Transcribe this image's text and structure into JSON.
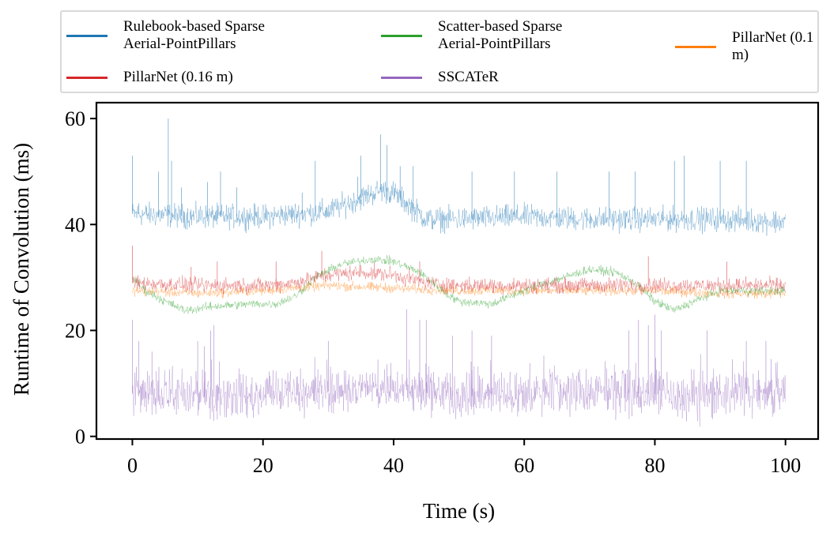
{
  "chart_data": {
    "type": "line",
    "title": "",
    "xlabel": "Time (s)",
    "ylabel": "Runtime of Convolution (ms)",
    "xlim": [
      -5.5,
      105
    ],
    "ylim": [
      -0.5,
      63
    ],
    "xticks": [
      0,
      20,
      40,
      60,
      80,
      100
    ],
    "yticks": [
      0,
      20,
      40,
      60
    ],
    "grid": false,
    "legend_position": "top",
    "series": [
      {
        "name": "Rulebook-based Sparse\nAerial-PointPillars",
        "color": "#1f77b4",
        "baseline": [
          [
            0,
            42
          ],
          [
            10,
            41.5
          ],
          [
            20,
            41.5
          ],
          [
            30,
            42.5
          ],
          [
            35,
            45
          ],
          [
            38,
            46.5
          ],
          [
            40,
            46
          ],
          [
            43,
            43
          ],
          [
            45,
            41
          ],
          [
            50,
            41
          ],
          [
            60,
            41.5
          ],
          [
            70,
            41
          ],
          [
            80,
            41
          ],
          [
            90,
            41
          ],
          [
            100,
            40.5
          ]
        ],
        "noise": 2.2,
        "spikes": [
          [
            0,
            53
          ],
          [
            1,
            44
          ],
          [
            4,
            50
          ],
          [
            5.5,
            60
          ],
          [
            6,
            52
          ],
          [
            7.5,
            47
          ],
          [
            11.5,
            48
          ],
          [
            13.5,
            50
          ],
          [
            16,
            47
          ],
          [
            26,
            46
          ],
          [
            28,
            52
          ],
          [
            34.5,
            49
          ],
          [
            35,
            53
          ],
          [
            38,
            57
          ],
          [
            39,
            55
          ],
          [
            41,
            51
          ],
          [
            43,
            51
          ],
          [
            52,
            50
          ],
          [
            58.5,
            50
          ],
          [
            65,
            50
          ],
          [
            73,
            50
          ],
          [
            77,
            50
          ],
          [
            83,
            52
          ],
          [
            84.5,
            53
          ],
          [
            90,
            52
          ],
          [
            94,
            52
          ]
        ]
      },
      {
        "name": "Scatter-based Sparse\nAerial-PointPillars",
        "color": "#2ca02c",
        "baseline": [
          [
            0,
            30
          ],
          [
            2,
            27.5
          ],
          [
            5,
            25.5
          ],
          [
            8,
            23.8
          ],
          [
            12,
            24.5
          ],
          [
            18,
            25
          ],
          [
            22,
            25
          ],
          [
            25,
            26.5
          ],
          [
            28,
            30
          ],
          [
            32,
            32.5
          ],
          [
            37,
            33.5
          ],
          [
            40,
            33
          ],
          [
            44,
            31
          ],
          [
            48,
            27
          ],
          [
            50,
            25.5
          ],
          [
            55,
            25
          ],
          [
            58,
            26.5
          ],
          [
            62,
            28.5
          ],
          [
            66,
            30
          ],
          [
            70,
            31.5
          ],
          [
            74,
            31
          ],
          [
            77,
            29
          ],
          [
            80,
            25.5
          ],
          [
            83,
            23.8
          ],
          [
            86,
            25.5
          ],
          [
            90,
            27.5
          ],
          [
            95,
            27.5
          ],
          [
            100,
            27.5
          ]
        ],
        "noise": 0.8,
        "spikes": []
      },
      {
        "name": "PillarNet (0.1 m)",
        "color": "#ff7f0e",
        "baseline": [
          [
            0,
            27.5
          ],
          [
            10,
            27
          ],
          [
            20,
            27.5
          ],
          [
            30,
            28.5
          ],
          [
            40,
            28
          ],
          [
            50,
            27.5
          ],
          [
            60,
            27.5
          ],
          [
            70,
            27.5
          ],
          [
            80,
            27.5
          ],
          [
            90,
            27
          ],
          [
            100,
            27
          ]
        ],
        "noise": 0.9,
        "spikes": []
      },
      {
        "name": "PillarNet (0.16 m)",
        "color": "#d62728",
        "baseline": [
          [
            0,
            29
          ],
          [
            10,
            28.5
          ],
          [
            20,
            28.5
          ],
          [
            25,
            29
          ],
          [
            30,
            30.5
          ],
          [
            35,
            31
          ],
          [
            40,
            30.5
          ],
          [
            45,
            29
          ],
          [
            50,
            28.5
          ],
          [
            60,
            28.5
          ],
          [
            70,
            28.5
          ],
          [
            80,
            28.5
          ],
          [
            90,
            28.5
          ],
          [
            100,
            28.5
          ]
        ],
        "noise": 1.4,
        "spikes": [
          [
            0,
            36
          ],
          [
            9,
            32
          ],
          [
            13,
            33
          ],
          [
            22,
            33
          ],
          [
            29,
            35
          ],
          [
            44,
            33
          ],
          [
            79,
            34
          ],
          [
            91,
            33
          ]
        ]
      },
      {
        "name": "SSCATeR",
        "color": "#9467bd",
        "baseline": [
          [
            0,
            8
          ],
          [
            10,
            7.5
          ],
          [
            20,
            7.5
          ],
          [
            30,
            8.5
          ],
          [
            40,
            9
          ],
          [
            50,
            7.5
          ],
          [
            60,
            8
          ],
          [
            70,
            8.5
          ],
          [
            80,
            8
          ],
          [
            83,
            7
          ],
          [
            90,
            8
          ],
          [
            100,
            8
          ]
        ],
        "noise": 4.0,
        "spikes": [
          [
            0,
            22
          ],
          [
            1,
            18
          ],
          [
            3,
            16
          ],
          [
            10,
            18
          ],
          [
            11,
            17
          ],
          [
            12,
            20
          ],
          [
            12.5,
            21
          ],
          [
            30,
            18
          ],
          [
            42,
            24
          ],
          [
            44,
            22
          ],
          [
            45,
            22
          ],
          [
            49,
            19
          ],
          [
            52,
            20
          ],
          [
            55,
            19
          ],
          [
            76,
            20
          ],
          [
            77.5,
            22
          ],
          [
            79,
            21
          ],
          [
            80,
            23
          ],
          [
            81,
            20
          ],
          [
            88,
            20
          ],
          [
            94,
            18
          ],
          [
            97,
            18
          ]
        ]
      }
    ]
  }
}
